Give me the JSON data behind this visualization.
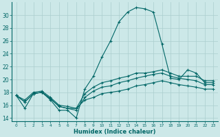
{
  "xlabel": "Humidex (Indice chaleur)",
  "background_color": "#cce8e8",
  "line_color": "#006666",
  "grid_color": "#aacece",
  "xlim": [
    -0.5,
    23.5
  ],
  "ylim": [
    13.5,
    32.0
  ],
  "xticks": [
    0,
    1,
    2,
    3,
    4,
    5,
    6,
    7,
    8,
    9,
    10,
    11,
    12,
    13,
    14,
    15,
    16,
    17,
    18,
    19,
    20,
    21,
    22,
    23
  ],
  "yticks": [
    14,
    16,
    18,
    20,
    22,
    24,
    26,
    28,
    30
  ],
  "lines": [
    [
      17.5,
      15.5,
      17.8,
      18.0,
      16.8,
      15.2,
      15.2,
      14.0,
      18.5,
      20.5,
      23.5,
      26.0,
      29.0,
      30.5,
      31.2,
      31.0,
      30.5,
      25.5,
      20.2,
      20.0,
      21.5,
      21.0,
      19.5,
      19.5
    ],
    [
      17.5,
      16.8,
      18.0,
      18.2,
      17.2,
      16.0,
      15.8,
      15.5,
      17.8,
      18.8,
      19.5,
      19.8,
      20.2,
      20.5,
      21.0,
      21.0,
      21.2,
      21.5,
      21.0,
      20.5,
      20.5,
      20.5,
      19.8,
      19.8
    ],
    [
      17.5,
      16.5,
      17.8,
      18.0,
      17.0,
      15.8,
      15.5,
      15.2,
      17.2,
      18.2,
      18.8,
      19.0,
      19.5,
      19.8,
      20.2,
      20.5,
      20.8,
      21.0,
      20.5,
      20.2,
      20.0,
      19.8,
      19.2,
      19.2
    ],
    [
      17.5,
      16.5,
      17.8,
      18.0,
      17.0,
      15.8,
      15.5,
      15.5,
      16.8,
      17.2,
      17.8,
      18.0,
      18.2,
      18.5,
      19.0,
      19.2,
      19.5,
      19.8,
      19.5,
      19.2,
      19.0,
      18.8,
      18.5,
      18.5
    ]
  ]
}
